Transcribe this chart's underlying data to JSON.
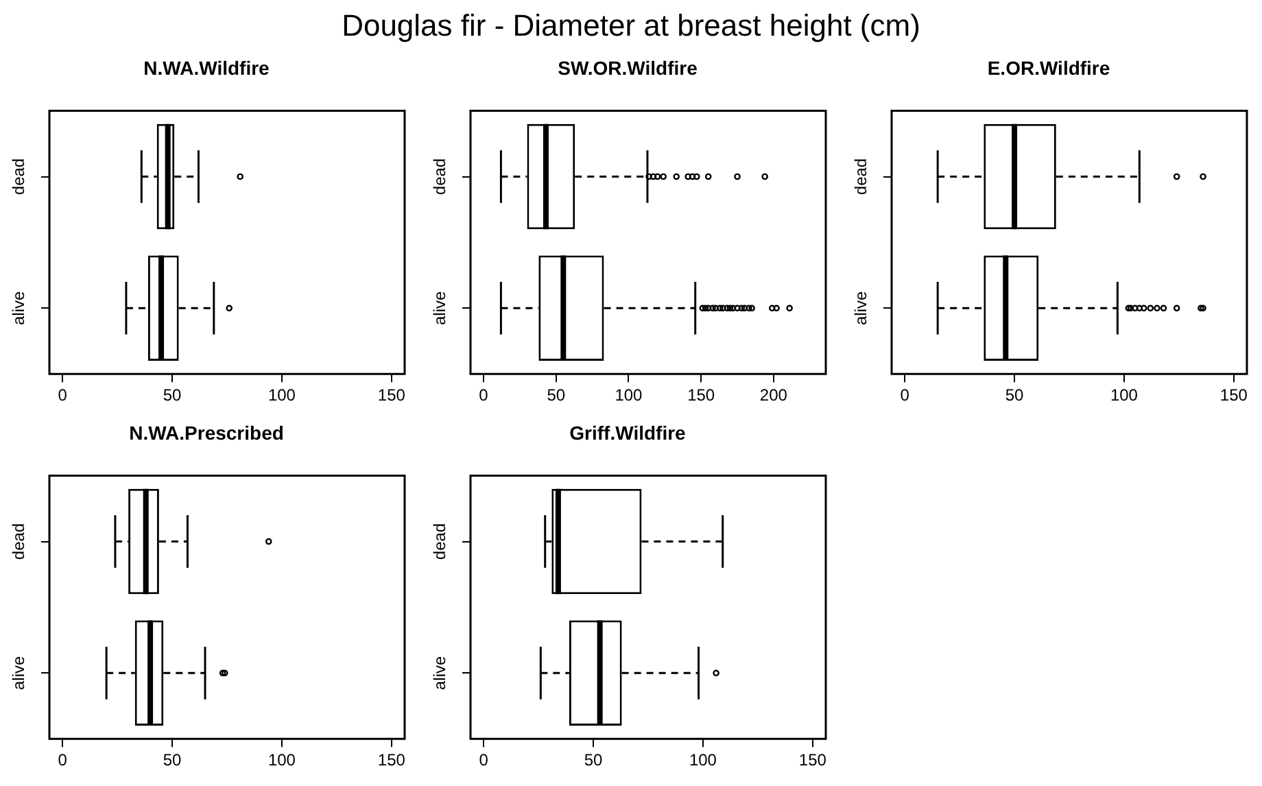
{
  "chart_data": [
    {
      "type": "other",
      "title": "Douglas fir - Diameter at breast height (cm)"
    },
    {
      "type": "box",
      "title": "N.WA.Wildfire",
      "orientation": "horizontal",
      "categories": [
        "dead",
        "alive"
      ],
      "xlim": [
        -6,
        156
      ],
      "xticks": [
        0,
        50,
        100,
        150
      ],
      "grid": false,
      "boxes": [
        {
          "low": 36,
          "q1": 43,
          "median": 48,
          "q3": 51,
          "high": 62,
          "outliers": [
            81
          ]
        },
        {
          "low": 29,
          "q1": 39,
          "median": 45,
          "q3": 53,
          "high": 69,
          "outliers": [
            76
          ]
        }
      ]
    },
    {
      "type": "box",
      "title": "SW.OR.Wildfire",
      "orientation": "horizontal",
      "categories": [
        "dead",
        "alive"
      ],
      "xlim": [
        -9,
        236
      ],
      "xticks": [
        0,
        50,
        100,
        150,
        200
      ],
      "grid": false,
      "boxes": [
        {
          "low": 12,
          "q1": 30,
          "median": 43,
          "q3": 63,
          "high": 113,
          "outliers": [
            114,
            117,
            120,
            124,
            133,
            141,
            144,
            147,
            155,
            175,
            194
          ]
        },
        {
          "low": 12,
          "q1": 38,
          "median": 55,
          "q3": 83,
          "high": 146,
          "outliers": [
            151,
            153,
            155,
            158,
            160,
            163,
            165,
            168,
            170,
            172,
            175,
            178,
            180,
            183,
            185,
            199,
            202,
            211
          ]
        }
      ]
    },
    {
      "type": "box",
      "title": "E.OR.Wildfire",
      "orientation": "horizontal",
      "categories": [
        "dead",
        "alive"
      ],
      "xlim": [
        -6,
        156
      ],
      "xticks": [
        0,
        50,
        100,
        150
      ],
      "grid": false,
      "boxes": [
        {
          "low": 15,
          "q1": 36,
          "median": 50,
          "q3": 69,
          "high": 107,
          "outliers": [
            124,
            136
          ]
        },
        {
          "low": 15,
          "q1": 36,
          "median": 46,
          "q3": 61,
          "high": 97,
          "outliers": [
            102,
            103,
            105,
            107,
            109,
            112,
            115,
            118,
            124,
            135,
            136
          ]
        }
      ]
    },
    {
      "type": "box",
      "title": "N.WA.Prescribed",
      "orientation": "horizontal",
      "categories": [
        "dead",
        "alive"
      ],
      "xlim": [
        -6,
        156
      ],
      "xticks": [
        0,
        50,
        100,
        150
      ],
      "grid": false,
      "boxes": [
        {
          "low": 24,
          "q1": 30,
          "median": 38,
          "q3": 44,
          "high": 57,
          "outliers": [
            94
          ]
        },
        {
          "low": 20,
          "q1": 33,
          "median": 40,
          "q3": 46,
          "high": 65,
          "outliers": [
            73,
            74
          ]
        }
      ]
    },
    {
      "type": "box",
      "title": "Griff.Wildfire",
      "orientation": "horizontal",
      "categories": [
        "dead",
        "alive"
      ],
      "xlim": [
        -6,
        156
      ],
      "xticks": [
        0,
        50,
        100,
        150
      ],
      "grid": false,
      "boxes": [
        {
          "low": 28,
          "q1": 31,
          "median": 34,
          "q3": 72,
          "high": 109
        },
        {
          "low": 26,
          "q1": 39,
          "median": 53,
          "q3": 63,
          "high": 98,
          "outliers": [
            106
          ]
        }
      ]
    }
  ]
}
